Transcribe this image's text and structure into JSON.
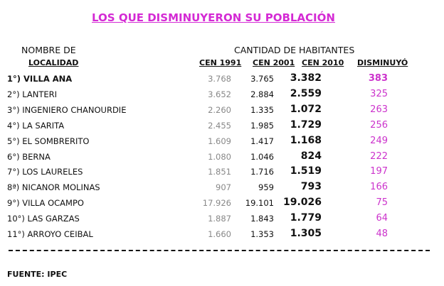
{
  "title": "LOS QUE DISMINUYERON SU POBLACIÓN",
  "header": {
    "name_line1": "NOMBRE DE",
    "name_line2": "LOCALIDAD",
    "group": "CANTIDAD DE HABITANTES",
    "c1991": "CEN 1991",
    "c2001": "CEN 2001",
    "c2010": "CEN 2010",
    "dis": "DISMINUYÓ"
  },
  "rows": [
    {
      "name": "1°) VILLA ANA",
      "c1991": "3.768",
      "c2001": "3.765",
      "c2010": "3.382",
      "dis": "383"
    },
    {
      "name": "2°)  LANTERI",
      "c1991": "3.652",
      "c2001": "2.884",
      "c2010": "2.559",
      "dis": "325"
    },
    {
      "name": "3°)  INGENIERO CHANOURDIE",
      "c1991": "2.260",
      "c2001": "1.335",
      "c2010": "1.072",
      "dis": "263"
    },
    {
      "name": "4°)  LA SARITA",
      "c1991": "2.455",
      "c2001": "1.985",
      "c2010": "1.729",
      "dis": "256"
    },
    {
      "name": "5°)  EL SOMBRERITO",
      "c1991": "1.609",
      "c2001": "1.417",
      "c2010": "1.168",
      "dis": "249"
    },
    {
      "name": "6°)  BERNA",
      "c1991": "1.080",
      "c2001": "1.046",
      "c2010": "824",
      "dis": "222"
    },
    {
      "name": "7°)  LOS LAURELES",
      "c1991": "1.851",
      "c2001": "1.716",
      "c2010": "1.519",
      "dis": "197"
    },
    {
      "name": "8ª) NICANOR MOLINAS",
      "c1991": "907",
      "c2001": "959",
      "c2010": "793",
      "dis": "166"
    },
    {
      "name": "9°) VILLA OCAMPO",
      "c1991": "17.926",
      "c2001": "19.101",
      "c2010": "19.026",
      "dis": "75"
    },
    {
      "name": "10°)  LAS GARZAS",
      "c1991": "1.887",
      "c2001": "1.843",
      "c2010": "1.779",
      "dis": "64"
    },
    {
      "name": "11°)  ARROYO CEIBAL",
      "c1991": "1.660",
      "c2001": "1.353",
      "c2010": "1.305",
      "dis": "48"
    }
  ],
  "source": "FUENTE: IPEC",
  "colors": {
    "title": "#d42ad4",
    "decrease": "#cc33cc"
  }
}
